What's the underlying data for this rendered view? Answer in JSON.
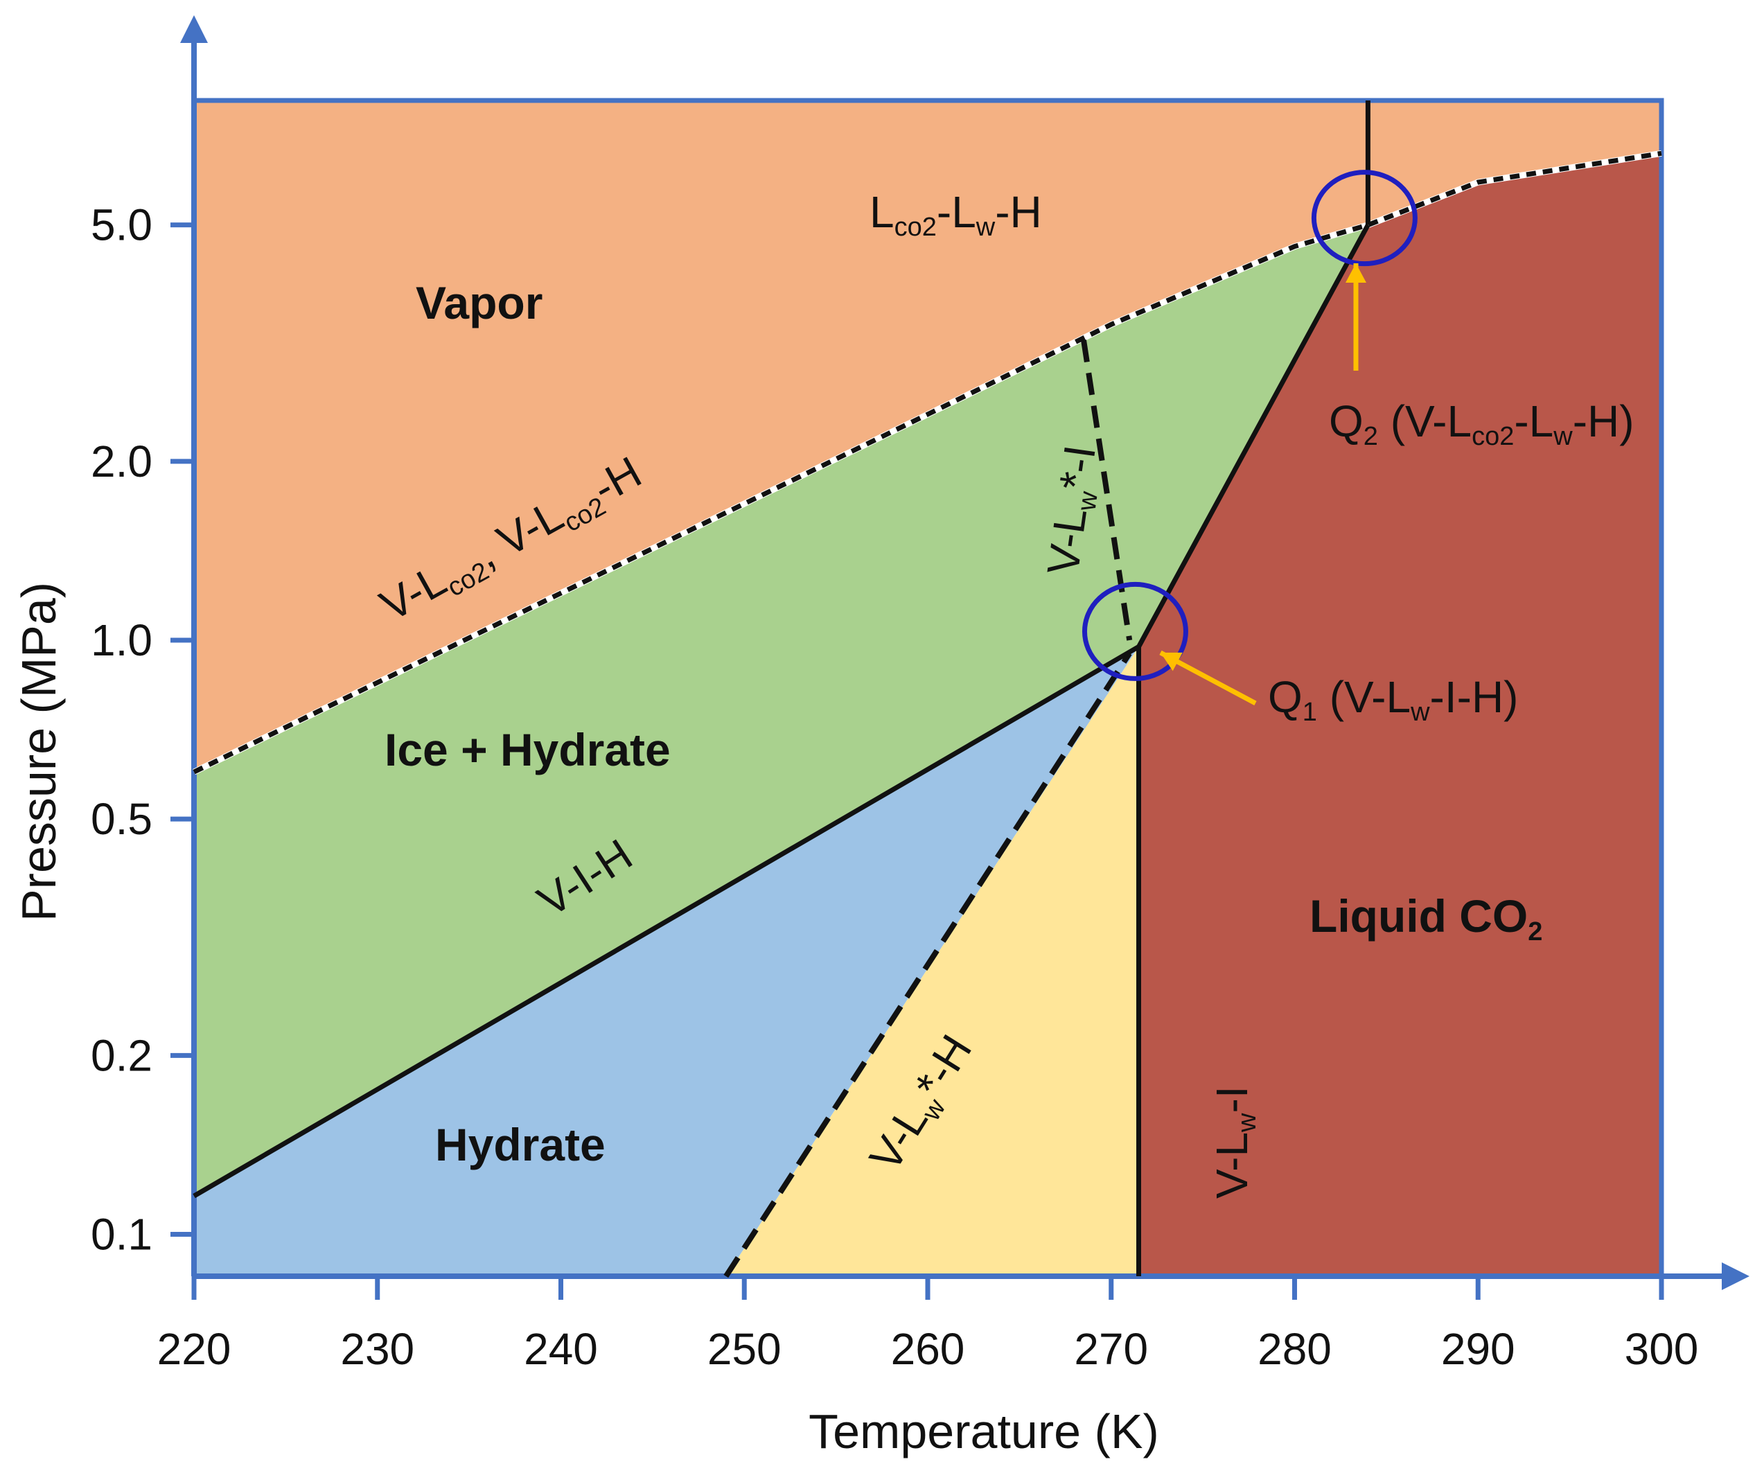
{
  "chart_data": {
    "type": "area",
    "xlabel": "Temperature (K)",
    "ylabel": "Pressure (MPa)",
    "xlim": [
      220,
      300
    ],
    "ylim": [
      0.085,
      8.1
    ],
    "y_scale": "log",
    "x_ticks": [
      220,
      230,
      240,
      250,
      260,
      270,
      280,
      290,
      300
    ],
    "x_tick_labels": [
      "220",
      "230",
      "240",
      "250",
      "260",
      "270",
      "280",
      "290",
      "300"
    ],
    "y_ticks": [
      0.1,
      0.2,
      0.5,
      1.0,
      2.0,
      5.0
    ],
    "y_tick_labels": [
      "0.1",
      "0.2",
      "0.5",
      "1.0",
      "2.0",
      "5.0"
    ],
    "colors": {
      "axis": "#4472c4",
      "vapor": "#f4b183",
      "ice_hydrate": "#a9d18e",
      "hydrate": "#9dc3e6",
      "yellow": "#ffe699",
      "liquid_co2": "#b9574a",
      "circle": "#1f1fbf",
      "arrow": "#ffc000",
      "line": "#111111"
    },
    "regions": [
      {
        "name": "Vapor",
        "fill": "vapor"
      },
      {
        "name": "Ice + Hydrate",
        "fill": "ice_hydrate"
      },
      {
        "name": "Hydrate",
        "fill": "hydrate"
      },
      {
        "name": "",
        "fill": "yellow"
      },
      {
        "name": "Liquid CO2",
        "fill": "liquid_co2"
      }
    ],
    "curves": {
      "v_lco2": {
        "label": "V-Lco2, V-Lco2-H",
        "style": "dotted",
        "points": [
          [
            220,
            0.6
          ],
          [
            240,
            1.2
          ],
          [
            260,
            2.4
          ],
          [
            270,
            3.4
          ],
          [
            280,
            4.6
          ],
          [
            284,
            5.0
          ],
          [
            290,
            5.9
          ],
          [
            300,
            6.6
          ]
        ]
      },
      "v_i_h": {
        "label": "V-I-H",
        "style": "solid",
        "points": [
          [
            220,
            0.116
          ],
          [
            271.5,
            0.975
          ]
        ]
      },
      "v_lw_i": {
        "label": "V-Lw-I",
        "style": "solid",
        "points": [
          [
            271.5,
            0.085
          ],
          [
            271.5,
            0.975
          ]
        ]
      },
      "v_lw_star_h": {
        "label": "V-Lw*-H",
        "style": "dashed",
        "points": [
          [
            249,
            0.085
          ],
          [
            271,
            0.95
          ]
        ]
      },
      "v_lw_star_i": {
        "label": "V-Lw*-I",
        "style": "dashed",
        "points": [
          [
            268.5,
            3.2
          ],
          [
            271,
            1.0
          ]
        ]
      },
      "v_lw_h": {
        "label": "",
        "style": "solid",
        "points": [
          [
            271.5,
            0.975
          ],
          [
            284,
            5.0
          ]
        ]
      },
      "q2_vertical": {
        "label": "",
        "style": "solid",
        "points": [
          [
            284,
            5.0
          ],
          [
            284,
            8.1
          ]
        ]
      }
    },
    "quadruple_points": [
      {
        "id": "Q1",
        "label": "(V-Lw-I-H)",
        "T": 271.5,
        "P": 0.975
      },
      {
        "id": "Q2",
        "label": "(V-Lco2-Lw-H)",
        "T": 284,
        "P": 5.0
      }
    ],
    "text": {
      "vapor": "Vapor",
      "ice_hydrate": "Ice + Hydrate",
      "hydrate": "Hydrate",
      "liquid_co2": "Liquid CO",
      "liquid_co2_sub": "2",
      "lco2_lw_h": {
        "L1": "L",
        "co2a": "co2",
        "mid": "-L",
        "w": "w",
        "end": "-H"
      },
      "v_lco2_curve": {
        "a": "V-L",
        "co2a": "co2",
        "b": ", V-L",
        "co2b": "co2",
        "c": "-H"
      },
      "v_i_h": "V-I-H",
      "v_lw_star_i": {
        "a": "V-L",
        "w": "w",
        "b": "*-I"
      },
      "v_lw_star_h": {
        "a": "V-L",
        "w": "w",
        "b": "*-H"
      },
      "v_lw_i": {
        "a": "V-L",
        "w": "w",
        "b": "-I"
      },
      "q1": {
        "Q": "Q",
        "num": "1",
        "a": " (V-L",
        "w": "w",
        "b": "-I-H)"
      },
      "q2": {
        "Q": "Q",
        "num": "2",
        "a": " (V-L",
        "co2": "co2",
        "b": "-L",
        "w": "w",
        "c": "-H)"
      }
    }
  }
}
